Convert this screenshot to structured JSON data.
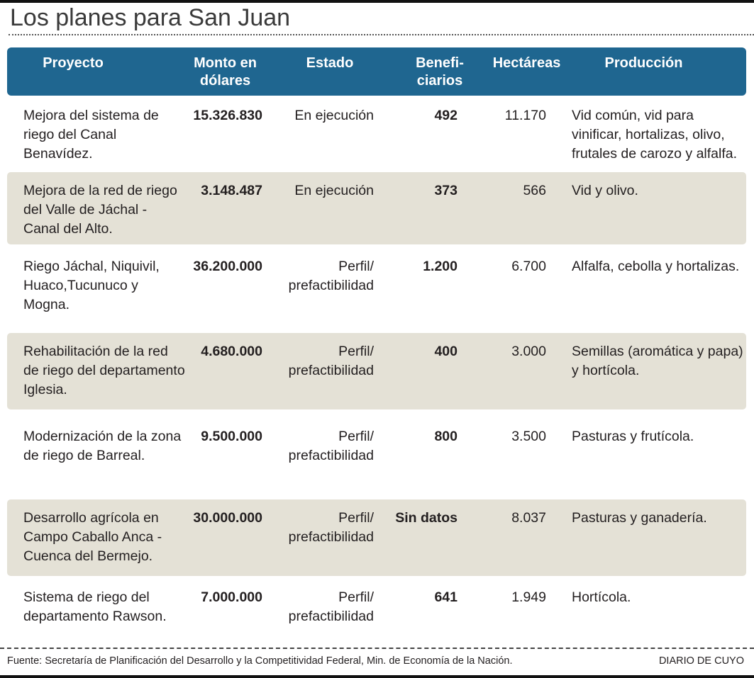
{
  "header": {
    "title": "Los planes para San Juan"
  },
  "table": {
    "columns": [
      "Proyecto",
      "Monto en dólares",
      "Estado",
      "Benefi-ciarios",
      "Hectáreas",
      "Producción"
    ],
    "rows": [
      [
        "Mejora del sistema de riego del Canal Benavídez.",
        "15.326.830",
        "En ejecución",
        "492",
        "11.170",
        "Vid común, vid para vinificar, hortalizas, olivo, frutales de carozo y alfalfa."
      ],
      [
        "Mejora de la red de riego del Valle de Jáchal - Canal del Alto.",
        "3.148.487",
        "En ejecución",
        "373",
        "566",
        "Vid y olivo."
      ],
      [
        "Riego Jáchal, Niquivil, Huaco,Tucunuco y Mogna.",
        "36.200.000",
        "Perfil/ prefactibilidad",
        "1.200",
        "6.700",
        "Alfalfa, cebolla y hortalizas."
      ],
      [
        "Rehabilitación de la red de riego del departamento Iglesia.",
        "4.680.000",
        "Perfil/ prefactibilidad",
        "400",
        "3.000",
        "Semillas (aromática y papa) y hortícola."
      ],
      [
        "Modernización de la zona de riego de Barreal.",
        "9.500.000",
        "Perfil/ prefactibilidad",
        "800",
        "3.500",
        "Pasturas y frutícola."
      ],
      [
        "Desarrollo agrícola en Campo Caballo Anca - Cuenca del Bermejo.",
        "30.000.000",
        "Perfil/ prefactibilidad",
        "Sin datos",
        "8.037",
        "Pasturas y ganadería."
      ],
      [
        "Sistema de riego del departamento Rawson.",
        "7.000.000",
        "Perfil/ prefactibilidad",
        "641",
        "1.949",
        "Hortícola."
      ]
    ]
  },
  "footer": {
    "source": "Fuente: Secretaría de Planificación del Desarrollo y la Competitividad Federal, Min. de Economía de la Nación.",
    "brand": "DIARIO DE CUYO"
  }
}
